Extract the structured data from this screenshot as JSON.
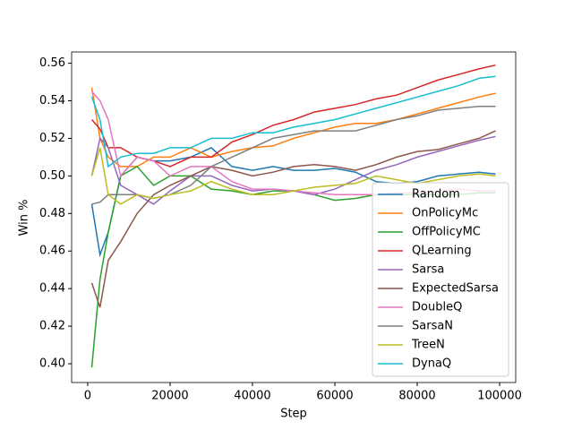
{
  "chart_data": {
    "type": "line",
    "x_label": "Step",
    "y_label": "Win %",
    "x": [
      1000,
      3000,
      5000,
      8000,
      12000,
      16000,
      20000,
      25000,
      30000,
      35000,
      40000,
      45000,
      50000,
      55000,
      60000,
      65000,
      70000,
      75000,
      80000,
      85000,
      90000,
      95000,
      99000
    ],
    "series": [
      {
        "name": "Random",
        "color": "#1f77b4",
        "values": [
          0.485,
          0.458,
          0.47,
          0.5,
          0.51,
          0.508,
          0.508,
          0.51,
          0.515,
          0.505,
          0.503,
          0.505,
          0.503,
          0.503,
          0.504,
          0.502,
          0.497,
          0.496,
          0.497,
          0.5,
          0.501,
          0.502,
          0.501
        ]
      },
      {
        "name": "OnPolicyMc",
        "color": "#ff7f0e",
        "values": [
          0.547,
          0.52,
          0.51,
          0.505,
          0.505,
          0.51,
          0.51,
          0.515,
          0.51,
          0.513,
          0.515,
          0.516,
          0.52,
          0.523,
          0.526,
          0.528,
          0.528,
          0.53,
          0.533,
          0.536,
          0.539,
          0.542,
          0.544
        ]
      },
      {
        "name": "OffPolicyMC",
        "color": "#2ca02c",
        "values": [
          0.398,
          0.445,
          0.47,
          0.5,
          0.505,
          0.495,
          0.5,
          0.5,
          0.493,
          0.492,
          0.49,
          0.492,
          0.492,
          0.49,
          0.487,
          0.488,
          0.49,
          0.49,
          0.49,
          0.49,
          0.49,
          0.491,
          0.491
        ]
      },
      {
        "name": "QLearning",
        "color": "#d62728",
        "values": [
          0.53,
          0.525,
          0.515,
          0.515,
          0.51,
          0.508,
          0.505,
          0.51,
          0.51,
          0.518,
          0.522,
          0.527,
          0.53,
          0.534,
          0.536,
          0.538,
          0.541,
          0.543,
          0.547,
          0.551,
          0.554,
          0.557,
          0.559
        ]
      },
      {
        "name": "Sarsa",
        "color": "#9467bd",
        "values": [
          0.5,
          0.52,
          0.515,
          0.495,
          0.49,
          0.485,
          0.492,
          0.5,
          0.5,
          0.495,
          0.492,
          0.493,
          0.492,
          0.49,
          0.493,
          0.498,
          0.503,
          0.506,
          0.51,
          0.513,
          0.516,
          0.519,
          0.521
        ]
      },
      {
        "name": "ExpectedSarsa",
        "color": "#8c564b",
        "values": [
          0.443,
          0.43,
          0.455,
          0.465,
          0.48,
          0.49,
          0.495,
          0.5,
          0.505,
          0.503,
          0.5,
          0.502,
          0.505,
          0.506,
          0.505,
          0.503,
          0.506,
          0.51,
          0.513,
          0.514,
          0.517,
          0.52,
          0.524
        ]
      },
      {
        "name": "DoubleQ",
        "color": "#e377c2",
        "values": [
          0.545,
          0.54,
          0.53,
          0.5,
          0.51,
          0.508,
          0.5,
          0.505,
          0.505,
          0.497,
          0.493,
          0.493,
          0.492,
          0.491,
          0.49,
          0.49,
          0.49,
          0.491,
          0.491,
          0.492,
          0.493,
          0.492,
          0.492
        ]
      },
      {
        "name": "SarsaN",
        "color": "#7f7f7f",
        "values": [
          0.485,
          0.486,
          0.49,
          0.49,
          0.49,
          0.488,
          0.49,
          0.495,
          0.505,
          0.51,
          0.515,
          0.52,
          0.522,
          0.524,
          0.524,
          0.524,
          0.527,
          0.53,
          0.532,
          0.535,
          0.536,
          0.537,
          0.537
        ]
      },
      {
        "name": "TreeN",
        "color": "#bcbd22",
        "values": [
          0.5,
          0.515,
          0.49,
          0.485,
          0.49,
          0.488,
          0.49,
          0.492,
          0.497,
          0.493,
          0.49,
          0.49,
          0.492,
          0.494,
          0.495,
          0.496,
          0.5,
          0.498,
          0.496,
          0.498,
          0.5,
          0.501,
          0.5
        ]
      },
      {
        "name": "DynaQ",
        "color": "#17becf",
        "values": [
          0.542,
          0.53,
          0.505,
          0.51,
          0.512,
          0.512,
          0.515,
          0.515,
          0.52,
          0.52,
          0.523,
          0.523,
          0.526,
          0.528,
          0.53,
          0.533,
          0.536,
          0.539,
          0.542,
          0.545,
          0.548,
          0.552,
          0.553
        ]
      }
    ],
    "xlim": [
      -3900,
      103900
    ],
    "ylim": [
      0.39,
      0.566
    ],
    "xticks": [
      0,
      20000,
      40000,
      60000,
      80000,
      100000
    ],
    "yticks": [
      {
        "value": 0.4,
        "label": "0.40"
      },
      0.42,
      0.44,
      0.46,
      0.48,
      {
        "value": 0.5,
        "label": "0.50"
      },
      0.52,
      0.54,
      0.56
    ],
    "legend": "lower right"
  }
}
